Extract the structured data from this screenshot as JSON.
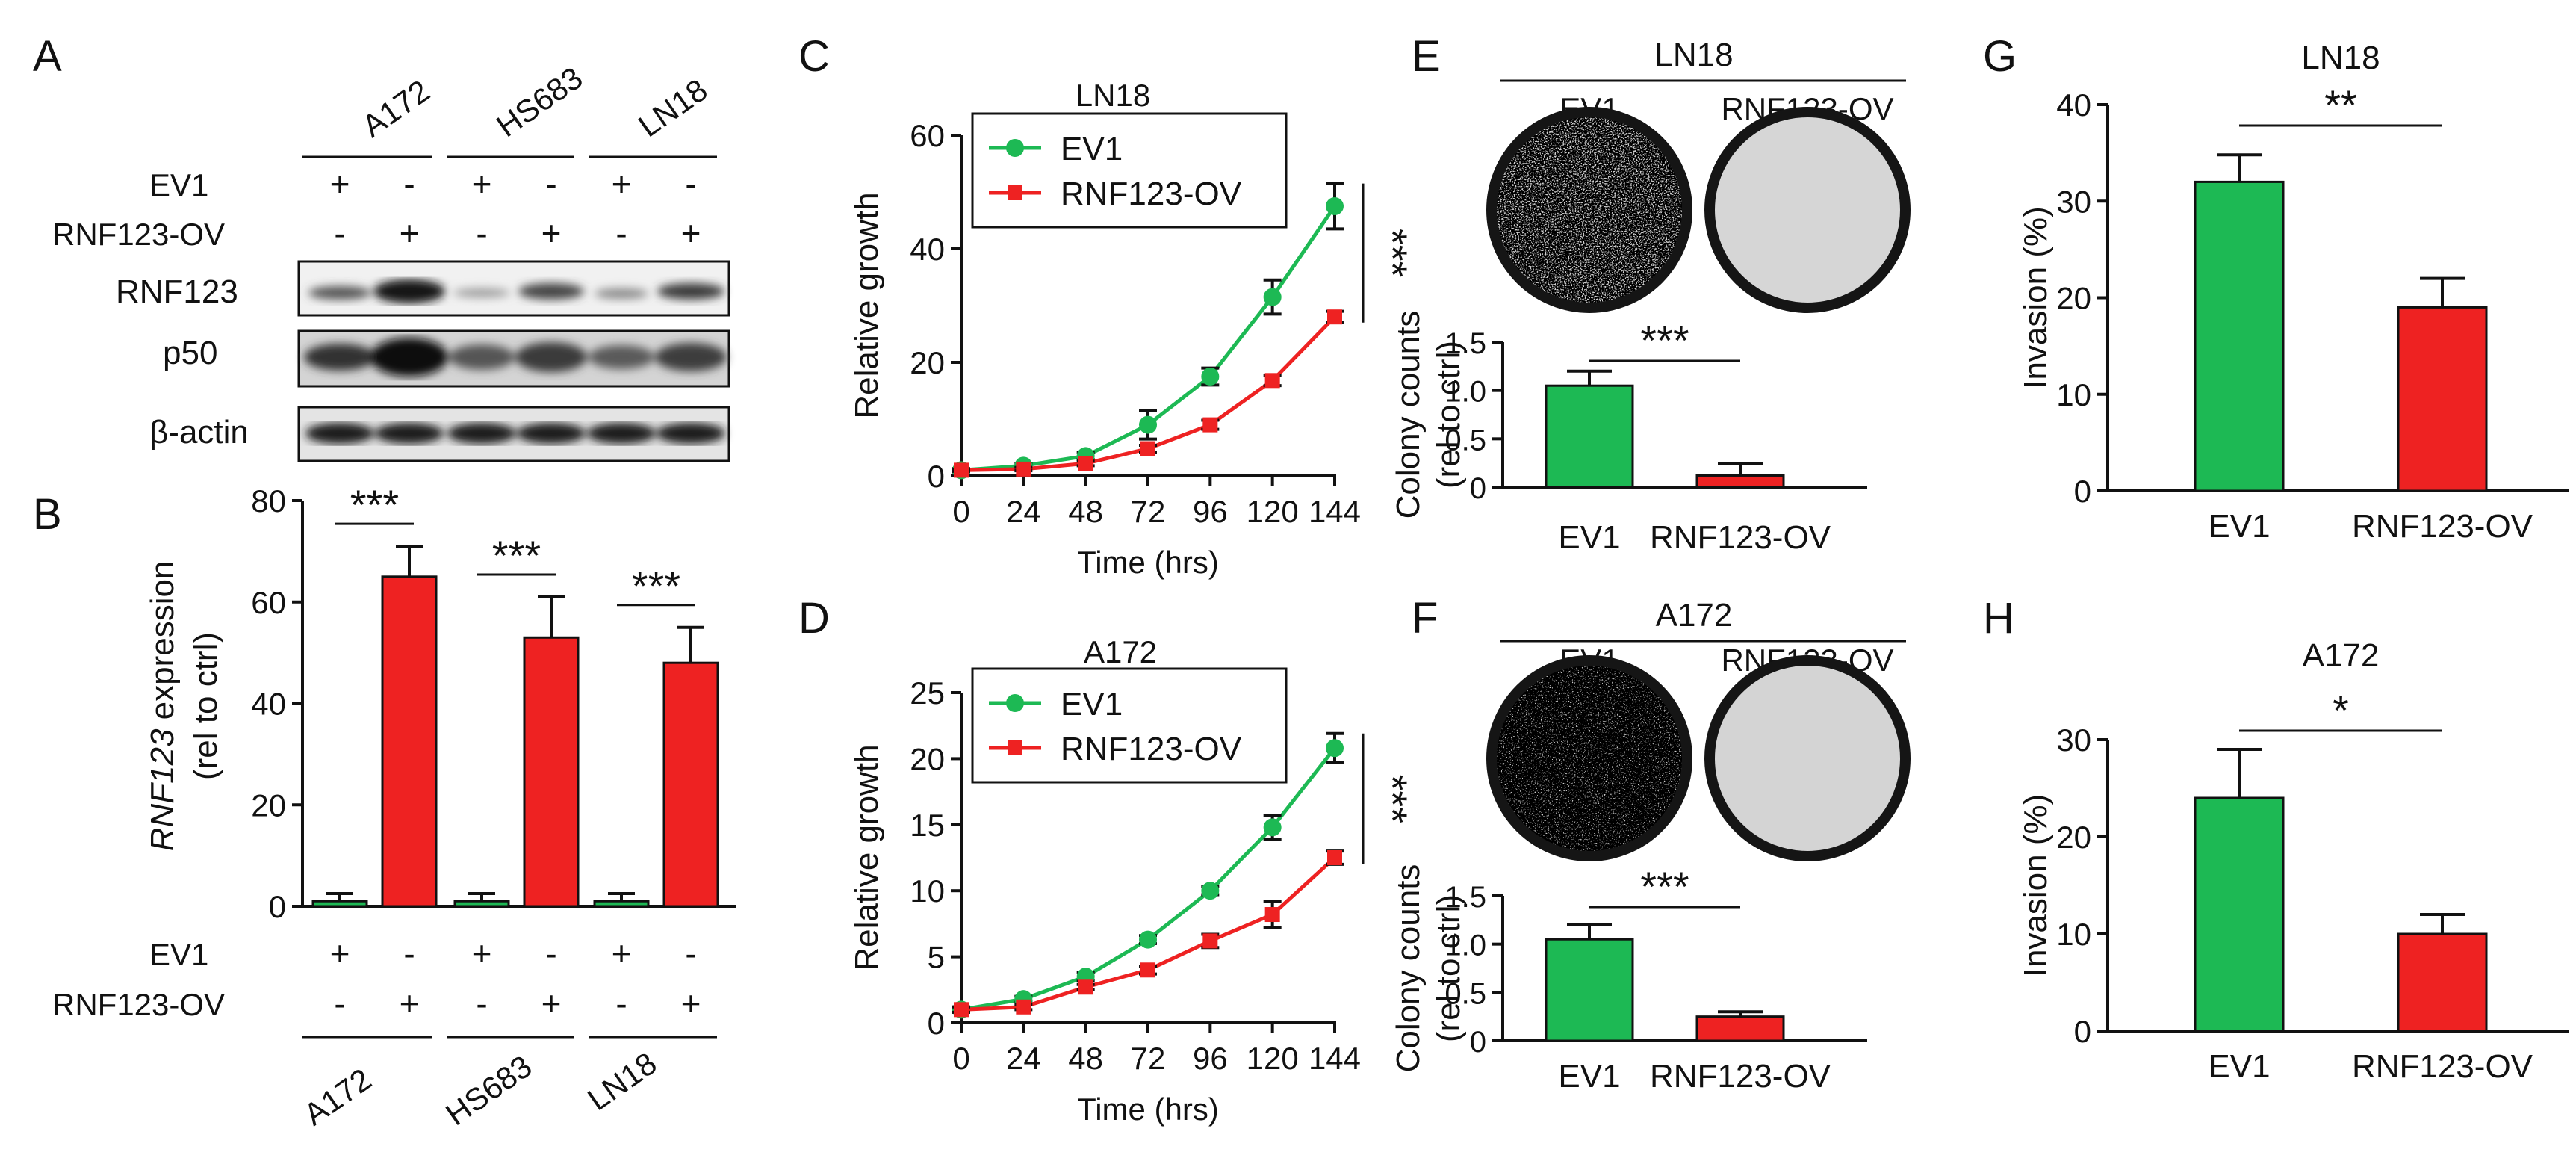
{
  "colors": {
    "ev1": "#1db954",
    "ov": "#ee2222",
    "axis": "#111111",
    "blot_band": "#2a2a2a",
    "plate_bg": "#c9c9c9",
    "plate_ring": "#151515"
  },
  "panels": {
    "A": {
      "letter": "A",
      "cell_lines": [
        "A172",
        "HS683",
        "LN18"
      ],
      "row_labels": {
        "ev1": "EV1",
        "ov": "RNF123-OV"
      },
      "ev1_signs": [
        "+",
        "-",
        "+",
        "-",
        "+",
        "-"
      ],
      "ov_signs": [
        "-",
        "+",
        "-",
        "+",
        "-",
        "+"
      ],
      "blots": [
        "RNF123",
        "p50",
        "β-actin"
      ]
    },
    "B": {
      "letter": "B"
    },
    "C": {
      "letter": "C"
    },
    "D": {
      "letter": "D"
    },
    "E": {
      "letter": "E",
      "cell_line": "LN18",
      "plate_labels": [
        "EV1",
        "RNF123-OV"
      ]
    },
    "F": {
      "letter": "F",
      "cell_line": "A172",
      "plate_labels": [
        "EV1",
        "RNF123-OV"
      ]
    },
    "G": {
      "letter": "G"
    },
    "H": {
      "letter": "H"
    }
  },
  "chart_data": [
    {
      "id": "B",
      "type": "bar",
      "title": "",
      "ylabel_italic": "RNF123",
      "ylabel_rest": " expression",
      "ylabel_line2": "(rel to ctrl)",
      "ylim": [
        0,
        80
      ],
      "yticks": [
        0,
        20,
        40,
        60,
        80
      ],
      "groups": [
        "A172",
        "HS683",
        "LN18"
      ],
      "series": [
        {
          "name": "EV1",
          "values": [
            1.0,
            1.0,
            1.0
          ],
          "errors": [
            1.5,
            1.5,
            1.5
          ]
        },
        {
          "name": "RNF123-OV",
          "values": [
            65,
            53,
            48
          ],
          "errors": [
            6,
            8,
            7
          ]
        }
      ],
      "significance": [
        "***",
        "***",
        "***"
      ],
      "row_labels": {
        "ev1": "EV1",
        "ov": "RNF123-OV"
      },
      "ev1_signs": [
        "+",
        "-",
        "+",
        "-",
        "+",
        "-"
      ],
      "ov_signs": [
        "-",
        "+",
        "-",
        "+",
        "-",
        "+"
      ]
    },
    {
      "id": "C",
      "type": "line",
      "title": "LN18",
      "xlabel": "Time (hrs)",
      "ylabel": "Relative growth",
      "x": [
        0,
        24,
        48,
        72,
        96,
        120,
        144
      ],
      "xlim": [
        0,
        144
      ],
      "ylim": [
        0,
        60
      ],
      "yticks": [
        0,
        20,
        40,
        60
      ],
      "series": [
        {
          "name": "EV1",
          "values": [
            1.0,
            1.8,
            3.5,
            9.0,
            17.5,
            31.5,
            47.5
          ],
          "errors": [
            0.3,
            0.4,
            0.6,
            2.5,
            1.5,
            3.0,
            4.0
          ]
        },
        {
          "name": "RNF123-OV",
          "values": [
            1.0,
            1.2,
            2.2,
            4.8,
            9.0,
            16.8,
            28.0
          ],
          "errors": [
            0.2,
            0.3,
            0.4,
            0.6,
            0.8,
            0.9,
            1.0
          ]
        }
      ],
      "significance": "***"
    },
    {
      "id": "D",
      "type": "line",
      "title": "A172",
      "xlabel": "Time (hrs)",
      "ylabel": "Relative growth",
      "x": [
        0,
        24,
        48,
        72,
        96,
        120,
        144
      ],
      "xlim": [
        0,
        144
      ],
      "ylim": [
        0,
        25
      ],
      "yticks": [
        0,
        5,
        10,
        15,
        20,
        25
      ],
      "series": [
        {
          "name": "EV1",
          "values": [
            1.0,
            1.8,
            3.5,
            6.3,
            10.0,
            14.8,
            20.8
          ],
          "errors": [
            0.2,
            0.2,
            0.3,
            0.3,
            0.3,
            0.9,
            1.1
          ]
        },
        {
          "name": "RNF123-OV",
          "values": [
            1.0,
            1.2,
            2.7,
            4.0,
            6.2,
            8.2,
            12.5
          ],
          "errors": [
            0.2,
            0.2,
            0.2,
            0.3,
            0.5,
            1.0,
            0.5
          ]
        }
      ],
      "significance": "***"
    },
    {
      "id": "E",
      "type": "bar",
      "title": "LN18",
      "ylabel": "Colony counts",
      "ylabel_line2": "(rel to ctrl)",
      "ylim": [
        0,
        1.5
      ],
      "yticks": [
        0,
        0.5,
        1.0,
        1.5
      ],
      "ytick_labels": [
        "0",
        "0.5",
        "1.0",
        "1.5"
      ],
      "categories": [
        "EV1",
        "RNF123-OV"
      ],
      "values": [
        1.05,
        0.12
      ],
      "errors": [
        0.15,
        0.12
      ],
      "significance": "***"
    },
    {
      "id": "F",
      "type": "bar",
      "title": "A172",
      "ylabel": "Colony counts",
      "ylabel_line2": "(rel to ctrl)",
      "ylim": [
        0,
        1.5
      ],
      "yticks": [
        0,
        0.5,
        1.0,
        1.5
      ],
      "ytick_labels": [
        "0",
        "0.5",
        "1.0",
        "1.5"
      ],
      "categories": [
        "EV1",
        "RNF123-OV"
      ],
      "values": [
        1.05,
        0.25
      ],
      "errors": [
        0.15,
        0.05
      ],
      "significance": "***"
    },
    {
      "id": "G",
      "type": "bar",
      "title": "LN18",
      "ylabel": "Invasion (%)",
      "ylim": [
        0,
        40
      ],
      "yticks": [
        0,
        10,
        20,
        30,
        40
      ],
      "categories": [
        "EV1",
        "RNF123-OV"
      ],
      "values": [
        32,
        19
      ],
      "errors": [
        2.8,
        3.0
      ],
      "significance": "**"
    },
    {
      "id": "H",
      "type": "bar",
      "title": "A172",
      "ylabel": "Invasion (%)",
      "ylim": [
        0,
        30
      ],
      "yticks": [
        0,
        10,
        20,
        30
      ],
      "categories": [
        "EV1",
        "RNF123-OV"
      ],
      "values": [
        24,
        10
      ],
      "errors": [
        5.0,
        2.0
      ],
      "significance": "*"
    }
  ]
}
